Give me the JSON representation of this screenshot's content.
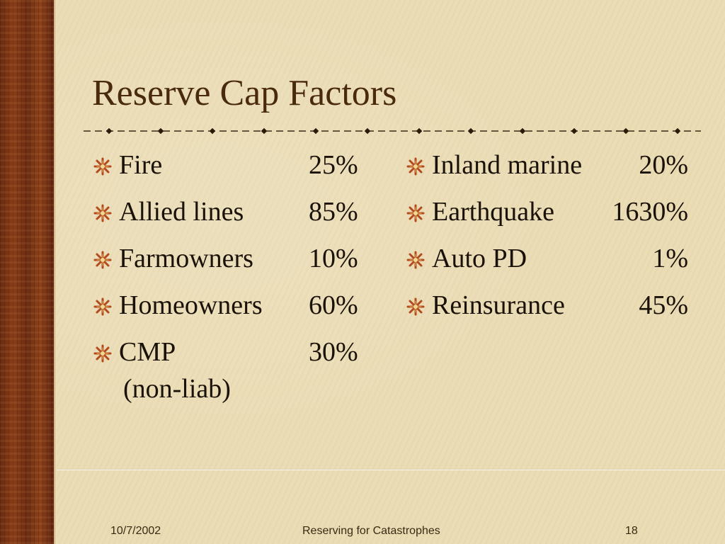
{
  "slide": {
    "title": "Reserve Cap Factors",
    "left_items": [
      {
        "label": "Fire",
        "value": "25%"
      },
      {
        "label": "Allied lines",
        "value": "85%"
      },
      {
        "label": "Farmowners",
        "value": "10%"
      },
      {
        "label": "Homeowners",
        "value": "60%"
      },
      {
        "label": "CMP",
        "sub": "(non-liab)",
        "value": "30%"
      }
    ],
    "right_items": [
      {
        "label": "Inland marine",
        "value": "20%"
      },
      {
        "label": "Earthquake",
        "value": "1630%"
      },
      {
        "label": "Auto PD",
        "value": "1%"
      },
      {
        "label": "Reinsurance",
        "value": "45%"
      }
    ]
  },
  "footer": {
    "date": "10/7/2002",
    "center": "Reserving for Catastrophes",
    "page": "18"
  },
  "colors": {
    "background": "#eadcb4",
    "sidebar": "#7a3614",
    "title": "#4a2a0e",
    "bullet": "#b24a1c"
  },
  "icons": {
    "bullet": "starburst-bullet-icon",
    "rule": "dashed-divider-with-diamonds"
  }
}
